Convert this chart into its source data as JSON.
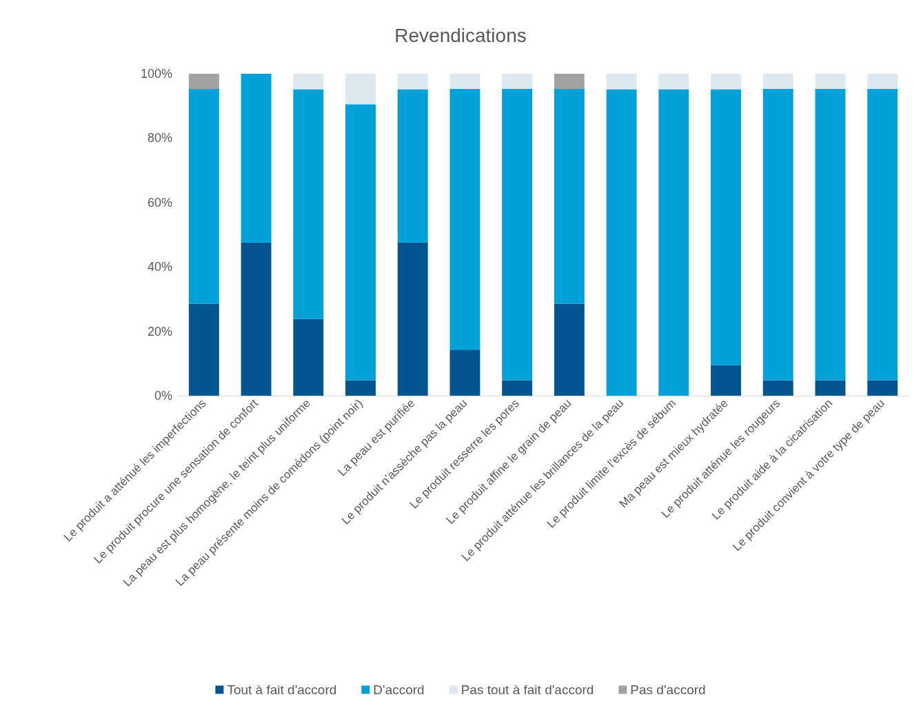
{
  "chart_data": {
    "type": "bar",
    "title": "Revendications",
    "stacked": true,
    "categories": [
      "Le produit a atténué les imperfections",
      "Le produit procure une sensation de confort",
      "La peau est plus homogène, le teint plus uniforme",
      "La peau présente moins de comédons (point noir)",
      "La peau est purifiée",
      "Le produit n'assèche pas la peau",
      "Le produit resserre les pores",
      "Le produit affine le grain de peau",
      "Le produit atténue les brillances de la peau",
      "Le produit limite l’excès de sébum",
      "Ma peau est mieux hydratée",
      "Le produit atténue les rougeurs",
      "Le produit aide à la cicatrisation",
      "Le produit convient à votre type de peau"
    ],
    "series": [
      {
        "name": "Tout à fait d'accord",
        "color": "#02558f",
        "values": [
          28.6,
          47.6,
          23.8,
          4.8,
          47.6,
          14.3,
          4.8,
          28.6,
          0,
          0,
          9.5,
          4.8,
          4.8,
          4.8
        ]
      },
      {
        "name": "D'accord",
        "color": "#00a1d9",
        "values": [
          66.7,
          52.4,
          71.4,
          85.7,
          47.6,
          81.0,
          90.5,
          66.7,
          95.2,
          95.2,
          85.7,
          90.5,
          90.5,
          90.5
        ]
      },
      {
        "name": "Pas tout à fait d'accord",
        "color": "#dde9f1",
        "values": [
          0,
          0,
          4.8,
          9.5,
          4.8,
          4.8,
          4.8,
          0,
          4.8,
          4.8,
          4.8,
          4.8,
          4.8,
          4.8
        ]
      },
      {
        "name": "Pas d'accord",
        "color": "#a2a2a2",
        "values": [
          4.8,
          0,
          0,
          0,
          0,
          0,
          0,
          4.8,
          0,
          0,
          0,
          0,
          0,
          0
        ]
      }
    ],
    "ylim": [
      0,
      100
    ],
    "yticks": [
      {
        "value": 0,
        "label": "0%"
      },
      {
        "value": 20,
        "label": "20%"
      },
      {
        "value": 40,
        "label": "40%"
      },
      {
        "value": 60,
        "label": "60%"
      },
      {
        "value": 80,
        "label": "80%"
      },
      {
        "value": 100,
        "label": "100%"
      }
    ],
    "legend": "bottom"
  }
}
